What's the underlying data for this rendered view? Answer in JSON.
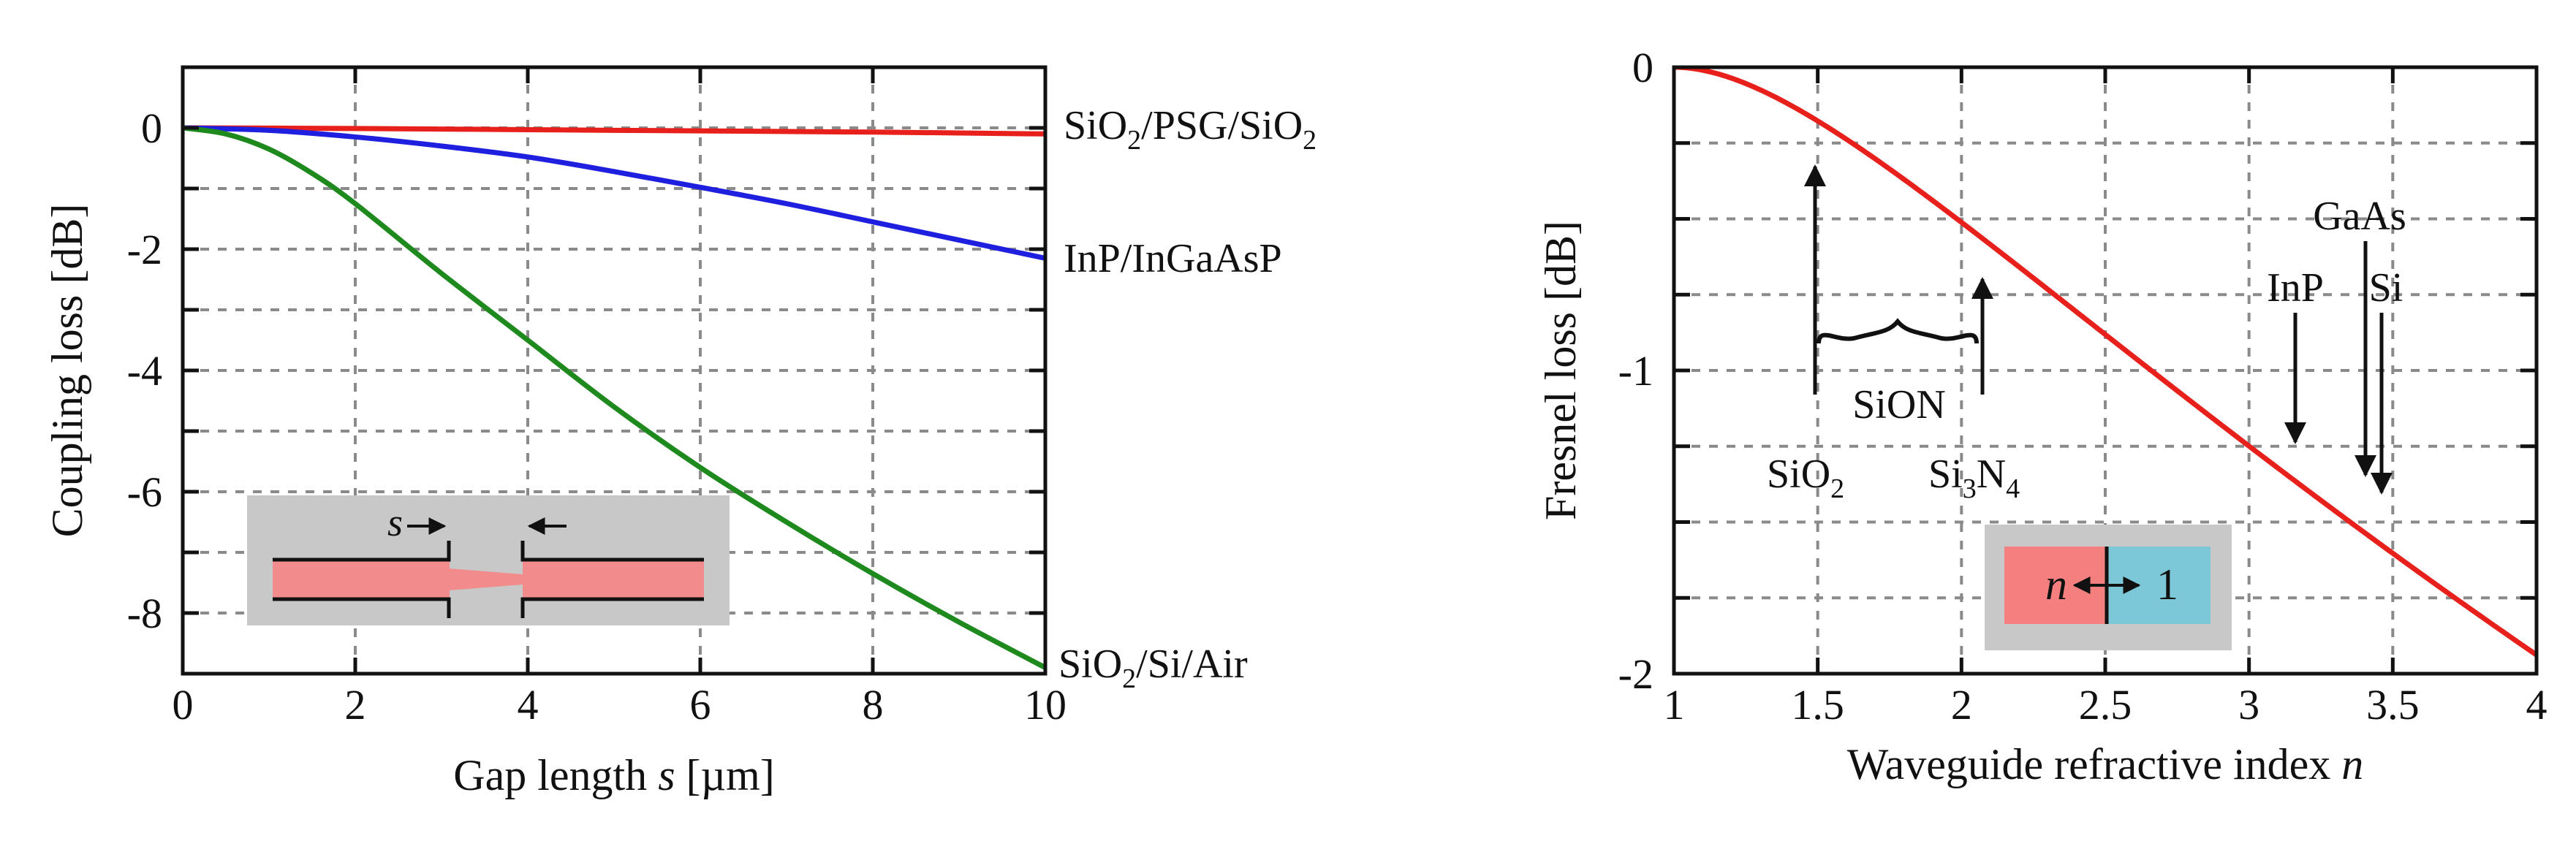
{
  "chart_data": [
    {
      "type": "line",
      "xlabel_prefix": "Gap length ",
      "xlabel_var": "s",
      "xlabel_suffix": " [µm]",
      "ylabel": "Coupling loss [dB]",
      "xlim": [
        0,
        10
      ],
      "ylim": [
        -9,
        1
      ],
      "x_ticks": [
        0,
        2,
        4,
        6,
        8,
        10
      ],
      "y_ticks": [
        0,
        -2,
        -4,
        -6,
        -8
      ],
      "x_tick_labels": [
        "0",
        "2",
        "4",
        "6",
        "8",
        "10"
      ],
      "y_tick_labels": [
        "0",
        "-2",
        "-4",
        "-6",
        "-8"
      ],
      "grid": true,
      "series": [
        {
          "name": "SiO2/PSG/SiO2",
          "color": "#e8201c",
          "x": [
            0,
            2,
            4,
            6,
            8,
            10
          ],
          "y": [
            0,
            -0.01,
            -0.03,
            -0.05,
            -0.07,
            -0.1
          ]
        },
        {
          "name": "InP/InGaAsP",
          "color": "#1f1fe0",
          "x": [
            0,
            1,
            2,
            3,
            4,
            5,
            6,
            7,
            8,
            9,
            10
          ],
          "y": [
            0,
            -0.04,
            -0.15,
            -0.3,
            -0.48,
            -0.72,
            -0.98,
            -1.25,
            -1.55,
            -1.85,
            -2.15
          ]
        },
        {
          "name": "SiO2/Si/Air",
          "color": "#1e8a1e",
          "x": [
            0,
            0.5,
            1,
            1.5,
            2,
            3,
            4,
            5,
            6,
            7,
            8,
            9,
            10
          ],
          "y": [
            0,
            -0.1,
            -0.35,
            -0.75,
            -1.25,
            -2.4,
            -3.5,
            -4.6,
            -5.6,
            -6.5,
            -7.35,
            -8.15,
            -8.9
          ]
        }
      ],
      "series_labels": [
        {
          "base": "SiO",
          "sub": "2",
          "mid": "/PSG/SiO",
          "sub2": "2"
        },
        {
          "base": "InP/InGaAsP"
        },
        {
          "base": "SiO",
          "sub": "2",
          "mid": "/Si/Air"
        }
      ],
      "inset": {
        "gap_label": "s",
        "core_color": "#f28b8b",
        "box_color": "#c8c8c8"
      }
    },
    {
      "type": "line",
      "xlabel_prefix": "Waveguide refractive index ",
      "xlabel_var": "n",
      "ylabel": "Fresnel loss [dB]",
      "xlim": [
        1,
        4
      ],
      "ylim": [
        -2,
        0
      ],
      "x_ticks": [
        1,
        1.5,
        2,
        2.5,
        3,
        3.5,
        4
      ],
      "y_ticks": [
        0,
        -1,
        -2
      ],
      "x_tick_labels": [
        "1",
        "1.5",
        "2",
        "2.5",
        "3",
        "3.5",
        "4"
      ],
      "y_tick_labels": [
        "0",
        "-1",
        "-2"
      ],
      "grid": true,
      "series": [
        {
          "name": "Fresnel loss",
          "color": "#e8201c",
          "formula": "10*log10(1 - ((n-1)/(n+1))^2)"
        }
      ],
      "annotations": {
        "sio2": {
          "base": "SiO",
          "sub": "2",
          "n": 1.5
        },
        "si3n4": {
          "a": "Si",
          "sub1": "3",
          "b": "N",
          "sub2": "4",
          "n": 2.1
        },
        "sion": "SiON",
        "gaas": {
          "label": "GaAs",
          "n": 3.4
        },
        "inp": {
          "label": "InP",
          "n": 3.17
        },
        "si": {
          "label": "Si",
          "n": 3.48
        }
      },
      "inset": {
        "left_label": "n",
        "right_label": "1",
        "left_color": "#f47f7f",
        "right_color": "#7cc8d8",
        "box_color": "#c8c8c8"
      }
    }
  ]
}
